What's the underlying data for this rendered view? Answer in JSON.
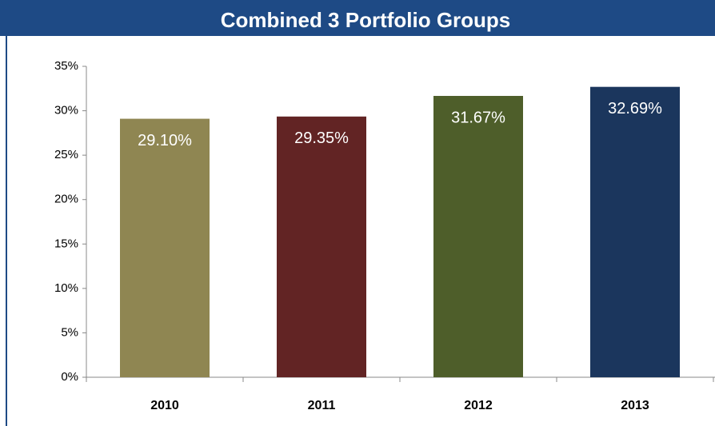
{
  "chart_data": {
    "type": "bar",
    "title": "Combined 3 Portfolio Groups",
    "categories": [
      "2010",
      "2011",
      "2012",
      "2013"
    ],
    "values": [
      29.1,
      29.35,
      31.67,
      32.69
    ],
    "value_labels": [
      "29.10%",
      "29.35%",
      "31.67%",
      "32.69%"
    ],
    "colors": [
      "#8f8652",
      "#622424",
      "#4e5e2a",
      "#1b365d"
    ],
    "ylim": [
      0,
      35
    ],
    "yticks": [
      {
        "value": 0,
        "label": "0%"
      },
      {
        "value": 5,
        "label": "5%"
      },
      {
        "value": 10,
        "label": "10%"
      },
      {
        "value": 15,
        "label": "15%"
      },
      {
        "value": 20,
        "label": "20%"
      },
      {
        "value": 25,
        "label": "25%"
      },
      {
        "value": 30,
        "label": "30%"
      },
      {
        "value": 35,
        "label": "35%"
      }
    ],
    "grid": false
  }
}
